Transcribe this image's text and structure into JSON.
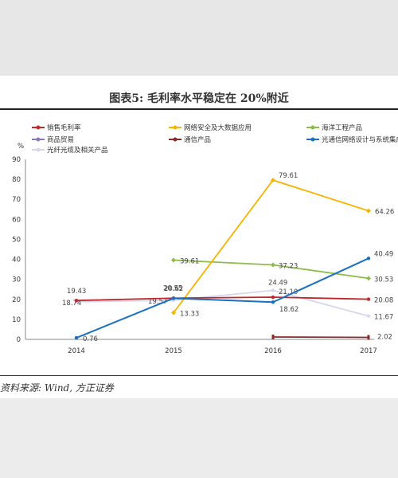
{
  "figure": {
    "title": "图表5:   毛利率水平稳定在 20%附近",
    "source": "资料来源: Wind, 方正证券"
  },
  "chart_data": {
    "type": "line",
    "ylabel": "%",
    "x": [
      "2014",
      "2015",
      "2016",
      "2017"
    ],
    "ylim": [
      0,
      90
    ],
    "yticks": [
      0,
      10,
      20,
      30,
      40,
      50,
      60,
      70,
      80,
      90
    ],
    "legend_position": "top",
    "series": [
      {
        "name": "销售毛利率",
        "color": "#c0282d",
        "values": [
          19.43,
          20.62,
          21.1,
          20.08
        ],
        "labels": [
          "19.43",
          "20.62",
          "21.10",
          "20.08"
        ]
      },
      {
        "name": "网络安全及大数据应用",
        "color": "#f4b400",
        "values": [
          null,
          13.33,
          79.61,
          64.26
        ],
        "labels": [
          "",
          "13.33",
          "79.61",
          "64.26"
        ]
      },
      {
        "name": "海洋工程产品",
        "color": "#8cbc4a",
        "values": [
          null,
          39.61,
          37.23,
          30.53
        ],
        "labels": [
          "",
          "39.61",
          "37.23",
          "30.53"
        ]
      },
      {
        "name": "商品贸易",
        "color": "#8878b8",
        "values": [
          null,
          null,
          null,
          null
        ],
        "labels": [
          "",
          "",
          "",
          ""
        ]
      },
      {
        "name": "通信产品",
        "color": "#8a2b2b",
        "values": [
          null,
          null,
          1.2,
          1.0
        ],
        "labels": [
          "",
          "",
          "",
          ""
        ]
      },
      {
        "name": "光通信网络设计与系统集成",
        "color": "#1a6fbf",
        "values": [
          0.76,
          20.55,
          18.62,
          40.49
        ],
        "labels": [
          "0.76",
          "20.55",
          "18.62",
          "40.49"
        ]
      },
      {
        "name": "光纤光缆及相关产品",
        "color": "#d6d7ee",
        "values": [
          18.74,
          19.57,
          24.49,
          11.67
        ],
        "labels": [
          "18.74",
          "19.57",
          "24.49",
          "11.67"
        ]
      }
    ],
    "annotations": [
      "2.02"
    ]
  }
}
